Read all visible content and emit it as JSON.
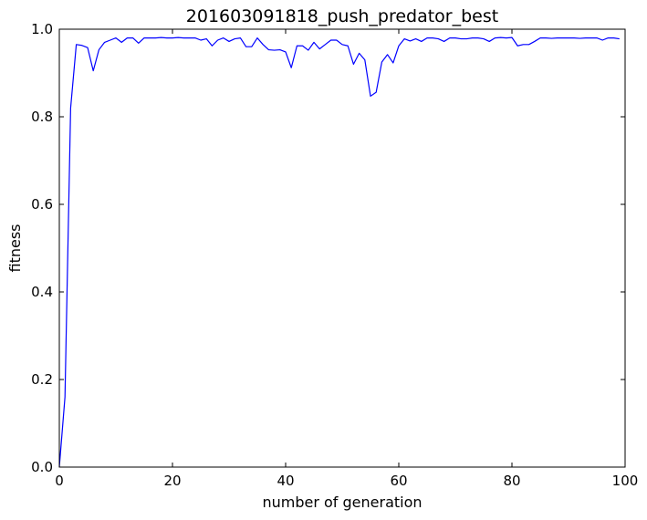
{
  "chart_data": {
    "type": "line",
    "title": "201603091818_push_predator_best",
    "xlabel": "number of generation",
    "ylabel": "fitness",
    "xlim": [
      0,
      100
    ],
    "ylim": [
      0.0,
      1.0
    ],
    "xticks": [
      0,
      20,
      40,
      60,
      80,
      100
    ],
    "xtick_labels": [
      "0",
      "20",
      "40",
      "60",
      "80",
      "100"
    ],
    "yticks": [
      0.0,
      0.2,
      0.4,
      0.6,
      0.8,
      1.0
    ],
    "ytick_labels": [
      "0.0",
      "0.2",
      "0.4",
      "0.6",
      "0.8",
      "1.0"
    ],
    "grid": false,
    "legend": "none",
    "series": [
      {
        "color": "#0000ff",
        "x": [
          0,
          1,
          2,
          3,
          4,
          5,
          6,
          7,
          8,
          9,
          10,
          11,
          12,
          13,
          14,
          15,
          16,
          17,
          18,
          19,
          20,
          21,
          22,
          23,
          24,
          25,
          26,
          27,
          28,
          29,
          30,
          31,
          32,
          33,
          34,
          35,
          36,
          37,
          38,
          39,
          40,
          41,
          42,
          43,
          44,
          45,
          46,
          47,
          48,
          49,
          50,
          51,
          52,
          53,
          54,
          55,
          56,
          57,
          58,
          59,
          60,
          61,
          62,
          63,
          64,
          65,
          66,
          67,
          68,
          69,
          70,
          71,
          72,
          73,
          74,
          75,
          76,
          77,
          78,
          79,
          80,
          81,
          82,
          83,
          84,
          85,
          86,
          87,
          88,
          89,
          90,
          91,
          92,
          93,
          94,
          95,
          96,
          97,
          98,
          99
        ],
        "y": [
          0.0,
          0.16,
          0.82,
          0.965,
          0.963,
          0.958,
          0.905,
          0.953,
          0.97,
          0.975,
          0.98,
          0.97,
          0.98,
          0.98,
          0.968,
          0.98,
          0.98,
          0.98,
          0.981,
          0.98,
          0.98,
          0.981,
          0.98,
          0.98,
          0.98,
          0.975,
          0.978,
          0.962,
          0.975,
          0.98,
          0.972,
          0.978,
          0.98,
          0.96,
          0.96,
          0.98,
          0.965,
          0.953,
          0.952,
          0.953,
          0.948,
          0.912,
          0.962,
          0.962,
          0.952,
          0.97,
          0.955,
          0.965,
          0.975,
          0.975,
          0.965,
          0.962,
          0.92,
          0.945,
          0.93,
          0.847,
          0.856,
          0.925,
          0.942,
          0.923,
          0.962,
          0.978,
          0.973,
          0.978,
          0.972,
          0.98,
          0.98,
          0.978,
          0.972,
          0.98,
          0.98,
          0.978,
          0.978,
          0.98,
          0.98,
          0.978,
          0.972,
          0.98,
          0.981,
          0.98,
          0.981,
          0.962,
          0.965,
          0.965,
          0.972,
          0.98,
          0.98,
          0.979,
          0.98,
          0.98,
          0.98,
          0.98,
          0.979,
          0.98,
          0.98,
          0.98,
          0.975,
          0.98,
          0.98,
          0.978
        ]
      }
    ]
  }
}
